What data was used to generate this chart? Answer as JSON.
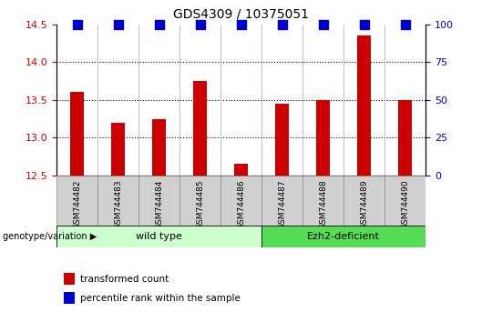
{
  "title": "GDS4309 / 10375051",
  "samples": [
    "GSM744482",
    "GSM744483",
    "GSM744484",
    "GSM744485",
    "GSM744486",
    "GSM744487",
    "GSM744488",
    "GSM744489",
    "GSM744490"
  ],
  "transformed_counts": [
    13.6,
    13.2,
    13.25,
    13.75,
    12.65,
    13.45,
    13.5,
    14.35,
    13.5
  ],
  "ylim_left": [
    12.5,
    14.5
  ],
  "ylim_right": [
    0,
    100
  ],
  "yticks_left": [
    12.5,
    13.0,
    13.5,
    14.0,
    14.5
  ],
  "yticks_right": [
    0,
    25,
    50,
    75,
    100
  ],
  "bar_color": "#cc0000",
  "dot_color": "#0000cc",
  "wild_type_label": "wild type",
  "ezh2_label": "Ezh2-deficient",
  "wild_type_color": "#ccffcc",
  "ezh2_color": "#55dd55",
  "genotype_label": "genotype/variation",
  "legend_bar_label": "transformed count",
  "legend_dot_label": "percentile rank within the sample",
  "background_color": "#ffffff",
  "bar_width": 0.35,
  "dot_size": 45,
  "dot_marker": "s",
  "sample_box_color": "#d0d0d0",
  "n_wild": 5,
  "n_ezh2": 4
}
